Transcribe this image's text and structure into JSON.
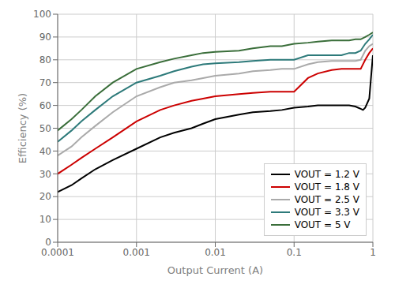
{
  "chart_data": {
    "type": "line",
    "xlabel": "Output Current (A)",
    "ylabel": "Efficiency (%)",
    "log": "x",
    "xlim": [
      0.0001,
      1
    ],
    "xticks": [
      0.0001,
      0.001,
      0.01,
      0.1,
      1
    ],
    "ylim": [
      0,
      100
    ],
    "yticks": [
      0,
      10,
      20,
      30,
      40,
      50,
      60,
      70,
      80,
      90,
      100
    ],
    "grid": true,
    "legend": "lower right",
    "series": [
      {
        "name": "VOUT = 1.2 V",
        "color": "#000000",
        "x": [
          0.0001,
          0.00015,
          0.0002,
          0.0003,
          0.0005,
          0.001,
          0.002,
          0.003,
          0.005,
          0.007,
          0.01,
          0.02,
          0.03,
          0.05,
          0.07,
          0.1,
          0.15,
          0.2,
          0.3,
          0.4,
          0.5,
          0.6,
          0.65,
          0.7,
          0.75,
          0.8,
          0.9,
          1.0
        ],
        "values": [
          22,
          25,
          28,
          32,
          36,
          41,
          46,
          48,
          50,
          52,
          54,
          56,
          57,
          57.5,
          58,
          59,
          59.5,
          60,
          60,
          60,
          60,
          59.5,
          59,
          58.5,
          58,
          59,
          63,
          82
        ]
      },
      {
        "name": "VOUT = 1.8 V",
        "color": "#cc0000",
        "x": [
          0.0001,
          0.00015,
          0.0002,
          0.0003,
          0.0005,
          0.001,
          0.002,
          0.003,
          0.005,
          0.007,
          0.01,
          0.02,
          0.03,
          0.05,
          0.07,
          0.1,
          0.15,
          0.2,
          0.3,
          0.4,
          0.5,
          0.6,
          0.7,
          0.8,
          0.9,
          1.0
        ],
        "values": [
          30,
          34,
          37,
          41,
          46,
          53,
          58,
          60,
          62,
          63,
          64,
          65,
          65.5,
          66,
          66,
          66,
          72,
          74,
          75.5,
          76,
          76,
          76,
          76,
          80,
          83,
          85
        ]
      },
      {
        "name": "VOUT = 2.5 V",
        "color": "#aaaaaa",
        "x": [
          0.0001,
          0.00015,
          0.0002,
          0.0003,
          0.0005,
          0.001,
          0.002,
          0.003,
          0.005,
          0.007,
          0.01,
          0.02,
          0.03,
          0.05,
          0.07,
          0.1,
          0.15,
          0.2,
          0.3,
          0.4,
          0.5,
          0.6,
          0.7,
          0.8,
          0.9,
          1.0
        ],
        "values": [
          38,
          42,
          46,
          51,
          57,
          64,
          68,
          70,
          71,
          72,
          73,
          74,
          75,
          75.5,
          76,
          76,
          78,
          79,
          79.5,
          79.5,
          79.5,
          79.5,
          80,
          84,
          86,
          87
        ]
      },
      {
        "name": "VOUT = 3.3 V",
        "color": "#2d7a7a",
        "x": [
          0.0001,
          0.00015,
          0.0002,
          0.0003,
          0.0005,
          0.001,
          0.002,
          0.003,
          0.005,
          0.007,
          0.01,
          0.02,
          0.03,
          0.05,
          0.07,
          0.1,
          0.15,
          0.2,
          0.3,
          0.4,
          0.5,
          0.6,
          0.7,
          0.8,
          0.9,
          1.0
        ],
        "values": [
          44,
          49,
          53,
          58,
          64,
          70,
          73,
          75,
          77,
          78,
          78.5,
          79,
          79.5,
          80,
          80,
          80,
          82,
          82,
          82,
          82,
          83,
          83,
          84,
          87,
          89,
          91
        ]
      },
      {
        "name": "VOUT = 5 V",
        "color": "#3a6e3a",
        "x": [
          0.0001,
          0.00015,
          0.0002,
          0.0003,
          0.0005,
          0.001,
          0.002,
          0.003,
          0.005,
          0.007,
          0.01,
          0.02,
          0.03,
          0.05,
          0.07,
          0.1,
          0.15,
          0.2,
          0.3,
          0.4,
          0.5,
          0.6,
          0.7,
          0.8,
          0.9,
          1.0
        ],
        "values": [
          49,
          54,
          58,
          64,
          70,
          76,
          79,
          80.5,
          82,
          83,
          83.5,
          84,
          85,
          86,
          86,
          87,
          87.5,
          88,
          88.5,
          88.5,
          88.5,
          89,
          89,
          90,
          91,
          92
        ]
      }
    ]
  }
}
